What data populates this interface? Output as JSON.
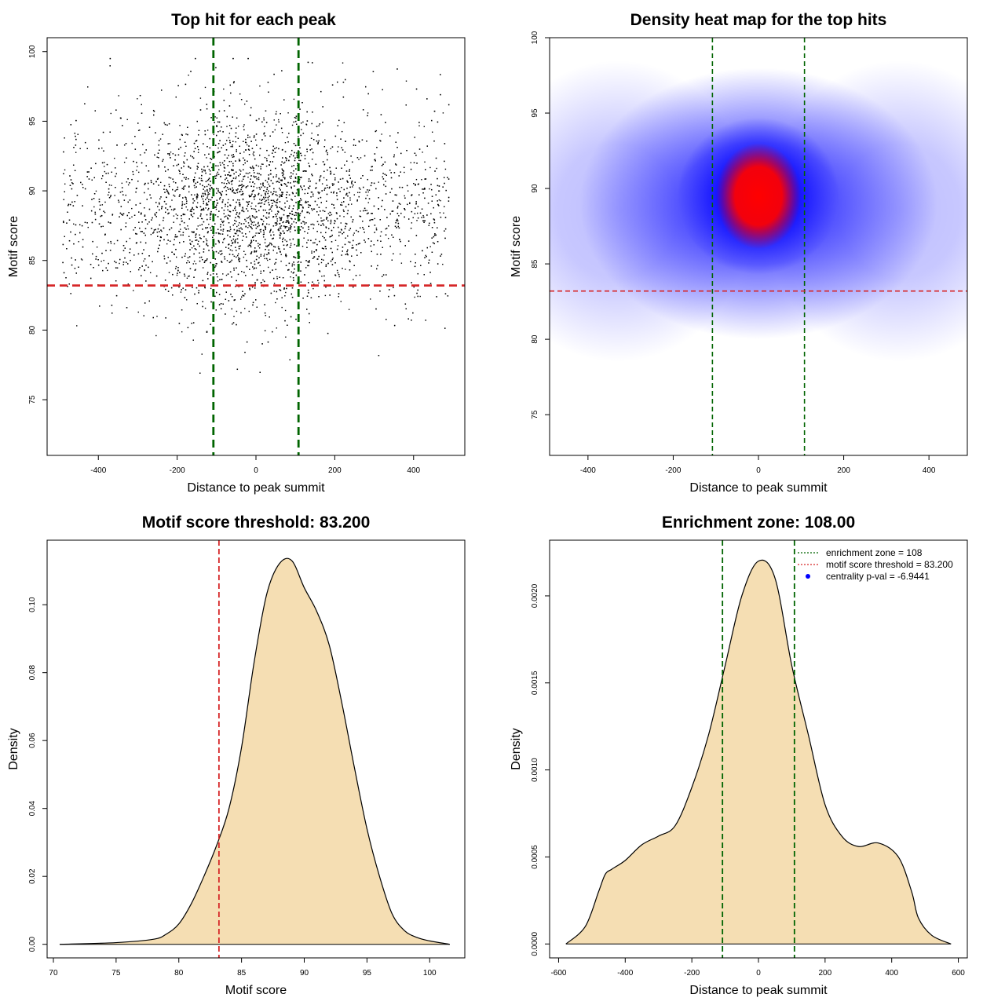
{
  "chart_data": [
    {
      "id": "scatter",
      "type": "scatter",
      "title": "Top hit for each peak",
      "xlabel": "Distance to peak summit",
      "ylabel": "Motif score",
      "xlim": [
        -530,
        530
      ],
      "ylim": [
        71,
        101
      ],
      "x_ticks": [
        -400,
        -200,
        0,
        200,
        400
      ],
      "y_ticks": [
        75,
        80,
        85,
        90,
        95,
        100
      ],
      "vlines": [
        -108,
        108
      ],
      "hline": 83.2,
      "vline_color": "#006400",
      "hline_color": "#d62728",
      "point_color": "#000000",
      "point_count": 5200,
      "point_distribution": {
        "x_center": 0,
        "x_sd": 140,
        "x_range": [
          -490,
          490
        ],
        "x_uniform_fraction": 0.45,
        "y_center": 88.8,
        "y_sd": 3.5,
        "y_range": [
          72,
          99.5
        ]
      }
    },
    {
      "id": "heatmap",
      "type": "heatmap",
      "title": "Density heat map for the top hits",
      "xlabel": "Distance to peak summit",
      "ylabel": "Motif score",
      "xlim": [
        -490,
        490
      ],
      "ylim": [
        72.3,
        100
      ],
      "x_ticks": [
        -400,
        -200,
        0,
        200,
        400
      ],
      "y_ticks": [
        75,
        80,
        85,
        90,
        95,
        100
      ],
      "vlines": [
        -108,
        108
      ],
      "hline": 83.2,
      "vline_color": "#006400",
      "hline_color": "#d62728",
      "color_scale": [
        "#ffffff",
        "#0000ff",
        "#ff0000"
      ],
      "density_blobs": [
        {
          "x": 0,
          "y": 89.5,
          "sx": 95,
          "sy": 2.6,
          "weight": 1.0
        },
        {
          "x": 0,
          "y": 89.0,
          "sx": 210,
          "sy": 4.5,
          "weight": 0.42
        },
        {
          "x": -330,
          "y": 88.5,
          "sx": 160,
          "sy": 5.0,
          "weight": 0.16
        },
        {
          "x": 330,
          "y": 88.5,
          "sx": 160,
          "sy": 5.0,
          "weight": 0.16
        }
      ]
    },
    {
      "id": "score-density",
      "type": "area",
      "title": "Motif score threshold: 83.200",
      "xlabel": "Motif score",
      "ylabel": "Density",
      "xlim": [
        69.5,
        102.8
      ],
      "ylim": [
        -0.004,
        0.119
      ],
      "x_ticks": [
        70,
        75,
        80,
        85,
        90,
        95,
        100
      ],
      "y_ticks": [
        "0.00",
        "0.02",
        "0.04",
        "0.06",
        "0.08",
        "0.10"
      ],
      "fill_color": "#f5deb3",
      "vline": 83.2,
      "vline_color": "#d62728",
      "x": [
        70.5,
        75,
        78,
        79,
        80,
        81,
        82,
        83,
        84,
        85,
        86,
        87,
        88,
        89,
        90,
        91,
        92,
        93,
        94,
        95,
        96,
        97,
        98,
        99,
        100,
        101.6
      ],
      "y": [
        0.0,
        0.0005,
        0.0015,
        0.003,
        0.006,
        0.012,
        0.02,
        0.029,
        0.04,
        0.058,
        0.083,
        0.103,
        0.112,
        0.113,
        0.105,
        0.098,
        0.088,
        0.071,
        0.052,
        0.034,
        0.02,
        0.009,
        0.004,
        0.002,
        0.001,
        0.0
      ]
    },
    {
      "id": "distance-density",
      "type": "area",
      "title": "Enrichment zone: 108.00",
      "xlabel": "Distance to peak summit",
      "ylabel": "Density",
      "xlim": [
        -627,
        627
      ],
      "ylim": [
        -8e-05,
        0.00232
      ],
      "x_ticks": [
        -600,
        -400,
        -200,
        0,
        200,
        400,
        600
      ],
      "y_ticks": [
        "0.0000",
        "0.0005",
        "0.0010",
        "0.0015",
        "0.0020"
      ],
      "fill_color": "#f5deb3",
      "vlines": [
        -108,
        108
      ],
      "vline_color": "#006400",
      "x": [
        -578,
        -520,
        -480,
        -460,
        -440,
        -400,
        -350,
        -300,
        -250,
        -200,
        -150,
        -100,
        -50,
        0,
        50,
        100,
        150,
        200,
        250,
        300,
        360,
        420,
        460,
        480,
        520,
        578
      ],
      "y": [
        0.0,
        0.0001,
        0.0003,
        0.0004,
        0.00043,
        0.00048,
        0.00057,
        0.00062,
        0.00068,
        0.0009,
        0.0012,
        0.0016,
        0.002,
        0.0022,
        0.0021,
        0.0016,
        0.0012,
        0.0008,
        0.00062,
        0.00056,
        0.00058,
        0.0005,
        0.0003,
        0.00015,
        5e-05,
        0.0
      ],
      "legend": [
        {
          "label": "enrichment zone = 108",
          "color": "#006400",
          "marker": "dotted-line"
        },
        {
          "label": "motif score threshold = 83.200",
          "color": "#d62728",
          "marker": "dotted-line"
        },
        {
          "label": "centrality p-val = -6.9441",
          "color": "#0000ff",
          "marker": "dot"
        }
      ],
      "legend_position": "top-right"
    }
  ]
}
